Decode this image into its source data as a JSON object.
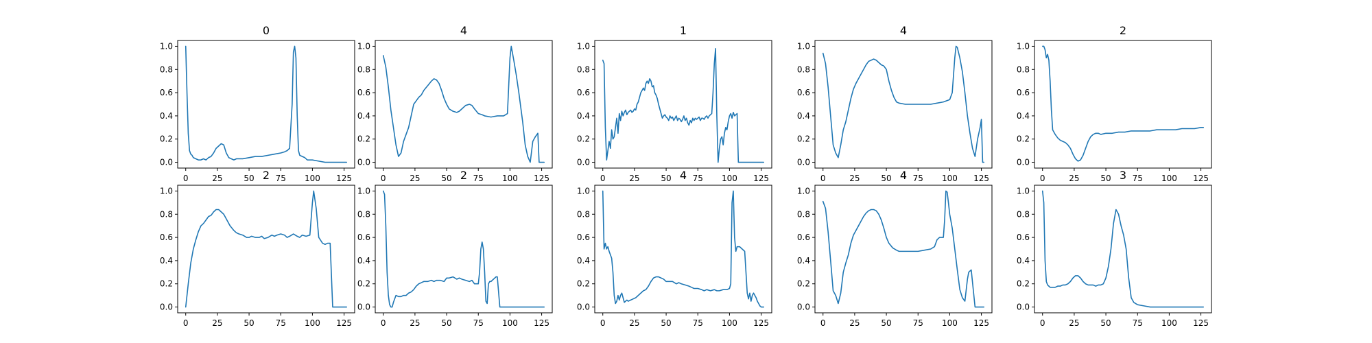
{
  "figure": {
    "line_color": "#1f77b4"
  },
  "chart_data": [
    {
      "type": "line",
      "title": "0",
      "xlim": [
        0,
        127
      ],
      "ylim": [
        0,
        1
      ],
      "xticks": [
        0,
        25,
        50,
        75,
        100,
        125
      ],
      "yticks": [
        0.0,
        0.2,
        0.4,
        0.6,
        0.8,
        1.0
      ],
      "x": [
        0,
        1,
        2,
        3,
        4,
        5,
        6,
        8,
        10,
        12,
        14,
        16,
        18,
        20,
        22,
        24,
        26,
        28,
        30,
        32,
        34,
        36,
        38,
        40,
        45,
        50,
        55,
        60,
        65,
        70,
        75,
        78,
        80,
        82,
        84,
        85,
        86,
        87,
        88,
        89,
        90,
        92,
        94,
        96,
        98,
        100,
        105,
        110,
        115,
        120,
        127
      ],
      "y": [
        1.0,
        0.6,
        0.25,
        0.1,
        0.07,
        0.06,
        0.04,
        0.03,
        0.02,
        0.02,
        0.03,
        0.02,
        0.04,
        0.05,
        0.08,
        0.12,
        0.14,
        0.16,
        0.15,
        0.08,
        0.04,
        0.03,
        0.02,
        0.03,
        0.03,
        0.04,
        0.05,
        0.05,
        0.06,
        0.07,
        0.08,
        0.09,
        0.1,
        0.12,
        0.5,
        0.95,
        1.0,
        0.9,
        0.4,
        0.1,
        0.06,
        0.05,
        0.04,
        0.02,
        0.02,
        0.02,
        0.01,
        0.0,
        0.0,
        0.0,
        0.0
      ]
    },
    {
      "type": "line",
      "title": "4",
      "xlim": [
        0,
        127
      ],
      "ylim": [
        0,
        1
      ],
      "xticks": [
        0,
        25,
        50,
        75,
        100,
        125
      ],
      "yticks": [
        0.0,
        0.2,
        0.4,
        0.6,
        0.8,
        1.0
      ],
      "x": [
        0,
        2,
        4,
        6,
        8,
        10,
        12,
        14,
        16,
        18,
        20,
        22,
        24,
        26,
        28,
        30,
        32,
        35,
        38,
        40,
        42,
        44,
        46,
        48,
        50,
        52,
        55,
        58,
        60,
        62,
        65,
        68,
        70,
        72,
        75,
        78,
        80,
        85,
        90,
        95,
        98,
        100,
        101,
        103,
        105,
        107,
        110,
        112,
        114,
        116,
        118,
        120,
        122,
        123,
        125,
        127
      ],
      "y": [
        0.92,
        0.82,
        0.65,
        0.45,
        0.3,
        0.15,
        0.05,
        0.08,
        0.18,
        0.24,
        0.3,
        0.4,
        0.5,
        0.53,
        0.56,
        0.58,
        0.62,
        0.66,
        0.7,
        0.72,
        0.71,
        0.68,
        0.62,
        0.55,
        0.5,
        0.46,
        0.44,
        0.43,
        0.44,
        0.46,
        0.49,
        0.5,
        0.49,
        0.46,
        0.42,
        0.41,
        0.4,
        0.39,
        0.4,
        0.4,
        0.42,
        0.9,
        1.0,
        0.88,
        0.75,
        0.6,
        0.35,
        0.15,
        0.05,
        0.0,
        0.18,
        0.22,
        0.25,
        0.0,
        0.0,
        0.0
      ]
    },
    {
      "type": "line",
      "title": "1",
      "xlim": [
        0,
        127
      ],
      "ylim": [
        0,
        1
      ],
      "xticks": [
        0,
        25,
        50,
        75,
        100,
        125
      ],
      "yticks": [
        0.0,
        0.2,
        0.4,
        0.6,
        0.8,
        1.0
      ],
      "x": [
        0,
        1,
        2,
        3,
        4,
        5,
        6,
        7,
        8,
        9,
        10,
        11,
        12,
        13,
        14,
        15,
        16,
        17,
        18,
        19,
        20,
        21,
        22,
        23,
        24,
        25,
        26,
        27,
        28,
        29,
        30,
        31,
        32,
        33,
        34,
        35,
        36,
        37,
        38,
        39,
        40,
        41,
        42,
        43,
        44,
        45,
        46,
        47,
        48,
        49,
        50,
        51,
        52,
        53,
        54,
        55,
        56,
        57,
        58,
        59,
        60,
        61,
        62,
        63,
        64,
        65,
        66,
        67,
        68,
        69,
        70,
        71,
        72,
        73,
        74,
        75,
        76,
        77,
        78,
        79,
        80,
        81,
        82,
        83,
        84,
        85,
        86,
        87,
        88,
        89,
        90,
        91,
        92,
        93,
        94,
        95,
        96,
        97,
        98,
        99,
        100,
        101,
        102,
        103,
        104,
        105,
        106,
        107,
        127
      ],
      "y": [
        0.88,
        0.85,
        0.3,
        0.02,
        0.1,
        0.18,
        0.12,
        0.28,
        0.2,
        0.22,
        0.3,
        0.38,
        0.25,
        0.42,
        0.36,
        0.44,
        0.4,
        0.43,
        0.45,
        0.41,
        0.43,
        0.44,
        0.45,
        0.43,
        0.44,
        0.46,
        0.45,
        0.5,
        0.52,
        0.56,
        0.6,
        0.62,
        0.64,
        0.62,
        0.68,
        0.7,
        0.68,
        0.72,
        0.7,
        0.65,
        0.66,
        0.6,
        0.58,
        0.55,
        0.5,
        0.46,
        0.42,
        0.38,
        0.4,
        0.41,
        0.39,
        0.38,
        0.36,
        0.4,
        0.38,
        0.39,
        0.36,
        0.38,
        0.4,
        0.36,
        0.38,
        0.37,
        0.35,
        0.37,
        0.4,
        0.36,
        0.38,
        0.34,
        0.32,
        0.36,
        0.34,
        0.38,
        0.36,
        0.38,
        0.37,
        0.38,
        0.39,
        0.36,
        0.38,
        0.38,
        0.37,
        0.39,
        0.4,
        0.38,
        0.4,
        0.41,
        0.42,
        0.6,
        0.85,
        0.98,
        0.4,
        0.0,
        0.12,
        0.2,
        0.22,
        0.15,
        0.25,
        0.3,
        0.28,
        0.35,
        0.4,
        0.42,
        0.38,
        0.43,
        0.4,
        0.41,
        0.42,
        0.0,
        0.0
      ]
    },
    {
      "type": "line",
      "title": "4",
      "xlim": [
        0,
        127
      ],
      "ylim": [
        0,
        1
      ],
      "xticks": [
        0,
        25,
        50,
        75,
        100,
        125
      ],
      "yticks": [
        0.0,
        0.2,
        0.4,
        0.6,
        0.8,
        1.0
      ],
      "x": [
        0,
        2,
        4,
        6,
        8,
        10,
        12,
        14,
        16,
        18,
        20,
        22,
        24,
        26,
        28,
        30,
        32,
        34,
        36,
        38,
        40,
        42,
        44,
        46,
        48,
        50,
        52,
        54,
        56,
        58,
        60,
        65,
        70,
        75,
        80,
        85,
        90,
        95,
        100,
        102,
        104,
        105,
        106,
        108,
        110,
        112,
        114,
        116,
        118,
        120,
        122,
        124,
        125,
        126,
        127
      ],
      "y": [
        0.94,
        0.85,
        0.65,
        0.4,
        0.15,
        0.08,
        0.04,
        0.15,
        0.28,
        0.35,
        0.45,
        0.55,
        0.63,
        0.68,
        0.72,
        0.76,
        0.8,
        0.84,
        0.87,
        0.88,
        0.89,
        0.88,
        0.86,
        0.84,
        0.83,
        0.8,
        0.7,
        0.62,
        0.56,
        0.52,
        0.51,
        0.5,
        0.5,
        0.5,
        0.5,
        0.5,
        0.51,
        0.52,
        0.54,
        0.6,
        0.9,
        1.0,
        0.99,
        0.9,
        0.78,
        0.6,
        0.4,
        0.25,
        0.12,
        0.05,
        0.2,
        0.3,
        0.37,
        0.0,
        0.0
      ]
    },
    {
      "type": "line",
      "title": "2",
      "xlim": [
        0,
        127
      ],
      "ylim": [
        0,
        1
      ],
      "xticks": [
        0,
        25,
        50,
        75,
        100,
        125
      ],
      "yticks": [
        0.0,
        0.2,
        0.4,
        0.6,
        0.8,
        1.0
      ],
      "x": [
        0,
        1,
        2,
        3,
        4,
        5,
        6,
        7,
        8,
        9,
        10,
        12,
        14,
        16,
        18,
        20,
        22,
        24,
        26,
        28,
        30,
        32,
        34,
        36,
        38,
        40,
        42,
        44,
        46,
        50,
        55,
        60,
        65,
        70,
        75,
        80,
        85,
        90,
        95,
        100,
        105,
        110,
        115,
        120,
        125,
        127
      ],
      "y": [
        1.0,
        1.0,
        0.97,
        0.9,
        0.93,
        0.88,
        0.7,
        0.45,
        0.28,
        0.26,
        0.24,
        0.21,
        0.19,
        0.18,
        0.17,
        0.15,
        0.12,
        0.07,
        0.03,
        0.01,
        0.02,
        0.06,
        0.12,
        0.18,
        0.22,
        0.24,
        0.25,
        0.25,
        0.24,
        0.25,
        0.25,
        0.26,
        0.26,
        0.27,
        0.27,
        0.27,
        0.27,
        0.28,
        0.28,
        0.28,
        0.28,
        0.29,
        0.29,
        0.29,
        0.3,
        0.3
      ]
    },
    {
      "type": "line",
      "title": "2",
      "xlim": [
        0,
        127
      ],
      "ylim": [
        0,
        1
      ],
      "xticks": [
        0,
        25,
        50,
        75,
        100,
        125
      ],
      "yticks": [
        0.0,
        0.2,
        0.4,
        0.6,
        0.8,
        1.0
      ],
      "x": [
        0,
        2,
        4,
        6,
        8,
        10,
        12,
        14,
        16,
        18,
        20,
        22,
        24,
        26,
        28,
        30,
        32,
        35,
        38,
        40,
        42,
        45,
        48,
        50,
        52,
        55,
        58,
        60,
        62,
        65,
        68,
        70,
        72,
        75,
        78,
        80,
        82,
        85,
        88,
        90,
        92,
        95,
        98,
        100,
        101,
        103,
        105,
        108,
        110,
        112,
        113,
        114,
        116,
        120,
        127
      ],
      "y": [
        0.0,
        0.2,
        0.38,
        0.5,
        0.58,
        0.65,
        0.7,
        0.72,
        0.75,
        0.78,
        0.79,
        0.82,
        0.84,
        0.84,
        0.82,
        0.8,
        0.76,
        0.7,
        0.66,
        0.64,
        0.63,
        0.62,
        0.6,
        0.6,
        0.61,
        0.6,
        0.6,
        0.61,
        0.59,
        0.6,
        0.62,
        0.61,
        0.62,
        0.63,
        0.62,
        0.6,
        0.61,
        0.63,
        0.61,
        0.6,
        0.62,
        0.61,
        0.62,
        0.9,
        1.0,
        0.85,
        0.6,
        0.55,
        0.54,
        0.55,
        0.55,
        0.55,
        0.0,
        0.0,
        0.0
      ]
    },
    {
      "type": "line",
      "title": "2",
      "xlim": [
        0,
        127
      ],
      "ylim": [
        0,
        1
      ],
      "xticks": [
        0,
        25,
        50,
        75,
        100,
        125
      ],
      "yticks": [
        0.0,
        0.2,
        0.4,
        0.6,
        0.8,
        1.0
      ],
      "x": [
        0,
        1,
        2,
        3,
        4,
        5,
        6,
        7,
        8,
        10,
        12,
        14,
        16,
        18,
        20,
        22,
        24,
        26,
        28,
        30,
        32,
        35,
        38,
        40,
        42,
        45,
        48,
        50,
        52,
        55,
        58,
        60,
        62,
        65,
        68,
        70,
        72,
        74,
        75,
        76,
        77,
        78,
        79,
        80,
        81,
        82,
        83,
        84,
        85,
        86,
        87,
        88,
        89,
        90,
        92,
        95,
        100,
        110,
        127
      ],
      "y": [
        1.0,
        0.97,
        0.7,
        0.3,
        0.1,
        0.02,
        0.0,
        0.0,
        0.04,
        0.1,
        0.09,
        0.09,
        0.1,
        0.1,
        0.12,
        0.13,
        0.15,
        0.18,
        0.2,
        0.21,
        0.22,
        0.22,
        0.23,
        0.22,
        0.23,
        0.23,
        0.22,
        0.25,
        0.25,
        0.26,
        0.24,
        0.25,
        0.24,
        0.23,
        0.22,
        0.23,
        0.2,
        0.2,
        0.2,
        0.3,
        0.5,
        0.56,
        0.5,
        0.3,
        0.05,
        0.03,
        0.2,
        0.22,
        0.22,
        0.23,
        0.24,
        0.25,
        0.26,
        0.26,
        0.0,
        0.0,
        0.0,
        0.0,
        0.0
      ]
    },
    {
      "type": "line",
      "title": "4",
      "xlim": [
        0,
        127
      ],
      "ylim": [
        0,
        1
      ],
      "xticks": [
        0,
        25,
        50,
        75,
        100,
        125
      ],
      "yticks": [
        0.0,
        0.2,
        0.4,
        0.6,
        0.8,
        1.0
      ],
      "x": [
        0,
        1,
        2,
        3,
        4,
        5,
        6,
        7,
        8,
        9,
        10,
        11,
        12,
        13,
        14,
        15,
        16,
        17,
        18,
        19,
        20,
        22,
        24,
        26,
        28,
        30,
        32,
        34,
        36,
        38,
        40,
        42,
        44,
        46,
        48,
        50,
        52,
        55,
        58,
        60,
        62,
        65,
        68,
        70,
        72,
        75,
        78,
        80,
        82,
        85,
        88,
        90,
        92,
        95,
        98,
        100,
        101,
        102,
        103,
        104,
        105,
        106,
        108,
        110,
        112,
        113,
        114,
        115,
        116,
        117,
        118,
        119,
        120,
        121,
        122,
        123,
        124,
        125,
        127
      ],
      "y": [
        1.0,
        0.5,
        0.55,
        0.5,
        0.52,
        0.48,
        0.45,
        0.42,
        0.3,
        0.1,
        0.03,
        0.05,
        0.1,
        0.06,
        0.1,
        0.12,
        0.08,
        0.04,
        0.05,
        0.06,
        0.05,
        0.06,
        0.07,
        0.08,
        0.1,
        0.12,
        0.14,
        0.15,
        0.18,
        0.22,
        0.25,
        0.26,
        0.26,
        0.25,
        0.24,
        0.22,
        0.22,
        0.22,
        0.2,
        0.21,
        0.2,
        0.19,
        0.18,
        0.17,
        0.16,
        0.16,
        0.15,
        0.14,
        0.15,
        0.14,
        0.15,
        0.14,
        0.14,
        0.15,
        0.15,
        0.16,
        0.2,
        0.9,
        1.0,
        0.6,
        0.48,
        0.52,
        0.52,
        0.5,
        0.48,
        0.3,
        0.12,
        0.07,
        0.12,
        0.05,
        0.1,
        0.12,
        0.1,
        0.08,
        0.05,
        0.03,
        0.01,
        0.0,
        0.0
      ]
    },
    {
      "type": "line",
      "title": "4",
      "xlim": [
        0,
        127
      ],
      "ylim": [
        0,
        1
      ],
      "xticks": [
        0,
        25,
        50,
        75,
        100,
        125
      ],
      "yticks": [
        0.0,
        0.2,
        0.4,
        0.6,
        0.8,
        1.0
      ],
      "x": [
        0,
        2,
        4,
        6,
        8,
        10,
        12,
        14,
        16,
        18,
        20,
        22,
        24,
        26,
        28,
        30,
        32,
        34,
        36,
        38,
        40,
        42,
        44,
        46,
        48,
        50,
        52,
        55,
        58,
        60,
        65,
        70,
        75,
        80,
        85,
        88,
        90,
        92,
        94,
        95,
        96,
        97,
        98,
        99,
        100,
        102,
        104,
        106,
        108,
        110,
        112,
        114,
        115,
        116,
        117,
        120,
        127
      ],
      "y": [
        0.91,
        0.85,
        0.65,
        0.4,
        0.14,
        0.1,
        0.03,
        0.12,
        0.3,
        0.38,
        0.45,
        0.55,
        0.62,
        0.66,
        0.7,
        0.74,
        0.78,
        0.81,
        0.83,
        0.84,
        0.84,
        0.83,
        0.8,
        0.75,
        0.68,
        0.6,
        0.55,
        0.51,
        0.49,
        0.48,
        0.48,
        0.48,
        0.48,
        0.49,
        0.5,
        0.52,
        0.58,
        0.6,
        0.6,
        0.6,
        0.75,
        1.0,
        0.99,
        0.9,
        0.8,
        0.68,
        0.5,
        0.32,
        0.15,
        0.08,
        0.05,
        0.24,
        0.3,
        0.31,
        0.32,
        0.0,
        0.0
      ]
    },
    {
      "type": "line",
      "title": "3",
      "xlim": [
        0,
        127
      ],
      "ylim": [
        0,
        1
      ],
      "xticks": [
        0,
        25,
        50,
        75,
        100,
        125
      ],
      "yticks": [
        0.0,
        0.2,
        0.4,
        0.6,
        0.8,
        1.0
      ],
      "x": [
        0,
        1,
        2,
        3,
        4,
        5,
        6,
        8,
        10,
        12,
        14,
        16,
        18,
        20,
        22,
        24,
        26,
        28,
        30,
        32,
        34,
        36,
        38,
        40,
        42,
        44,
        46,
        48,
        50,
        52,
        54,
        56,
        58,
        60,
        62,
        64,
        66,
        68,
        70,
        72,
        75,
        80,
        85,
        90,
        100,
        110,
        127
      ],
      "y": [
        1.0,
        0.9,
        0.4,
        0.22,
        0.19,
        0.18,
        0.17,
        0.17,
        0.17,
        0.18,
        0.18,
        0.19,
        0.19,
        0.2,
        0.22,
        0.25,
        0.27,
        0.27,
        0.25,
        0.22,
        0.2,
        0.19,
        0.19,
        0.19,
        0.18,
        0.19,
        0.19,
        0.2,
        0.25,
        0.35,
        0.5,
        0.72,
        0.84,
        0.8,
        0.7,
        0.62,
        0.5,
        0.25,
        0.08,
        0.04,
        0.02,
        0.01,
        0.0,
        0.0,
        0.0,
        0.0,
        0.0
      ]
    }
  ]
}
